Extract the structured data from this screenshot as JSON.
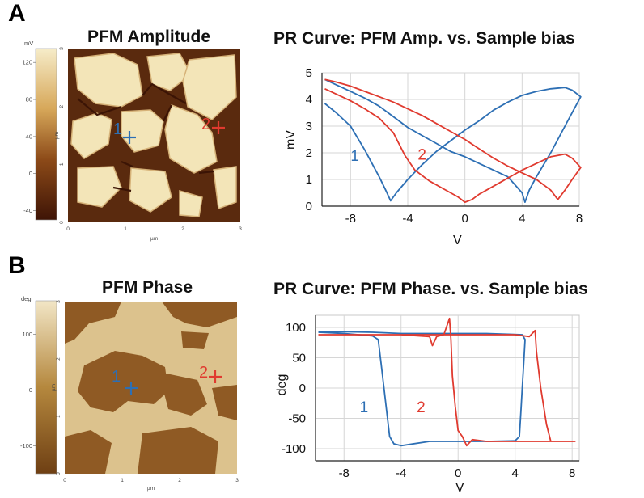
{
  "figure": {
    "panel_a": {
      "letter": "A",
      "image_title": "PFM Amplitude",
      "chart_title": "PR Curve: PFM Amp. vs. Sample bias"
    },
    "panel_b": {
      "letter": "B",
      "image_title": "PFM Phase",
      "chart_title": "PR Curve: PFM Phase. vs. Sample bias"
    }
  },
  "images": [
    {
      "colorbar_unit": "mV",
      "colorbar_ticks": [
        120,
        80,
        40,
        0,
        -40
      ],
      "colorbar_range": [
        -50,
        135
      ],
      "colors": {
        "dark": "#4a1a08",
        "light": "#f3e5b8"
      },
      "axis_unit": "µm",
      "axis_ticks": [
        0,
        1,
        2,
        3
      ],
      "markers": [
        {
          "label": "1",
          "color": "#2d6fb4"
        },
        {
          "label": "2",
          "color": "#e03a2f"
        }
      ]
    },
    {
      "colorbar_unit": "deg",
      "colorbar_ticks": [
        100,
        0,
        -100
      ],
      "colorbar_range": [
        -150,
        160
      ],
      "colors": {
        "dark": "#8f5a24",
        "light": "#dcc28d"
      },
      "axis_unit": "µm",
      "axis_ticks": [
        0,
        1,
        2,
        3
      ],
      "markers": [
        {
          "label": "1",
          "color": "#2d6fb4"
        },
        {
          "label": "2",
          "color": "#e03a2f"
        }
      ]
    }
  ],
  "chart_data": [
    {
      "type": "line",
      "title": "PR Curve: PFM Amp. vs. Sample bias",
      "xlabel": "V",
      "ylabel": "mV",
      "xlim": [
        -10,
        8
      ],
      "ylim": [
        0,
        5
      ],
      "xticks": [
        -8,
        -4,
        0,
        4,
        8
      ],
      "yticks": [
        0,
        1,
        2,
        3,
        4,
        5
      ],
      "grid": true,
      "series": [
        {
          "name": "1",
          "color": "#2d6fb4",
          "points": [
            [
              -9.8,
              3.85
            ],
            [
              -9,
              3.5
            ],
            [
              -8,
              3.0
            ],
            [
              -7,
              2.1
            ],
            [
              -6,
              1.1
            ],
            [
              -5.5,
              0.55
            ],
            [
              -5.2,
              0.2
            ],
            [
              -4.8,
              0.5
            ],
            [
              -4,
              1.0
            ],
            [
              -3,
              1.55
            ],
            [
              -2,
              2.05
            ],
            [
              -1,
              2.45
            ],
            [
              0,
              2.85
            ],
            [
              1,
              3.2
            ],
            [
              2,
              3.6
            ],
            [
              3,
              3.9
            ],
            [
              4,
              4.15
            ],
            [
              5,
              4.3
            ],
            [
              6,
              4.4
            ],
            [
              7,
              4.45
            ],
            [
              7.5,
              4.35
            ],
            [
              8.1,
              4.1
            ],
            [
              7.6,
              3.6
            ],
            [
              7,
              3.0
            ],
            [
              6,
              2.0
            ],
            [
              5,
              1.1
            ],
            [
              4.5,
              0.6
            ],
            [
              4.2,
              0.15
            ],
            [
              4,
              0.5
            ],
            [
              3,
              1.1
            ],
            [
              2,
              1.35
            ],
            [
              1,
              1.6
            ],
            [
              0,
              1.85
            ],
            [
              -1,
              2.05
            ],
            [
              -2,
              2.35
            ],
            [
              -3,
              2.65
            ],
            [
              -4,
              2.95
            ],
            [
              -5,
              3.35
            ],
            [
              -6,
              3.75
            ],
            [
              -7,
              4.05
            ],
            [
              -8,
              4.3
            ],
            [
              -9,
              4.55
            ],
            [
              -9.8,
              4.75
            ]
          ]
        },
        {
          "name": "2",
          "color": "#e03a2f",
          "points": [
            [
              -9.8,
              4.4
            ],
            [
              -9,
              4.2
            ],
            [
              -8,
              3.95
            ],
            [
              -7,
              3.65
            ],
            [
              -6,
              3.3
            ],
            [
              -5,
              2.75
            ],
            [
              -4.2,
              1.9
            ],
            [
              -3.5,
              1.35
            ],
            [
              -2.5,
              0.95
            ],
            [
              -1.5,
              0.65
            ],
            [
              -0.5,
              0.35
            ],
            [
              0,
              0.15
            ],
            [
              0.5,
              0.25
            ],
            [
              1,
              0.45
            ],
            [
              2,
              0.75
            ],
            [
              3,
              1.05
            ],
            [
              4,
              1.35
            ],
            [
              5,
              1.6
            ],
            [
              6,
              1.85
            ],
            [
              7,
              1.95
            ],
            [
              7.5,
              1.8
            ],
            [
              8.1,
              1.45
            ],
            [
              7.5,
              1.0
            ],
            [
              7,
              0.6
            ],
            [
              6.5,
              0.25
            ],
            [
              6,
              0.6
            ],
            [
              5,
              1.0
            ],
            [
              4,
              1.25
            ],
            [
              3,
              1.5
            ],
            [
              2,
              1.8
            ],
            [
              1,
              2.15
            ],
            [
              0,
              2.5
            ],
            [
              -1,
              2.8
            ],
            [
              -2,
              3.1
            ],
            [
              -3,
              3.4
            ],
            [
              -4,
              3.65
            ],
            [
              -5,
              3.9
            ],
            [
              -6,
              4.1
            ],
            [
              -7,
              4.3
            ],
            [
              -8,
              4.5
            ],
            [
              -9,
              4.65
            ],
            [
              -9.8,
              4.75
            ]
          ]
        }
      ],
      "annotations": [
        {
          "text": "1",
          "x": -8.0,
          "y": 1.7,
          "color": "#2d6fb4"
        },
        {
          "text": "2",
          "x": -3.3,
          "y": 1.75,
          "color": "#e03a2f"
        }
      ]
    },
    {
      "type": "line",
      "title": "PR Curve: PFM Phase. vs. Sample bias",
      "xlabel": "V",
      "ylabel": "deg",
      "xlim": [
        -10,
        8.5
      ],
      "ylim": [
        -120,
        120
      ],
      "xticks": [
        -8,
        -4,
        0,
        4,
        8
      ],
      "yticks": [
        100,
        50,
        0,
        -50,
        -100
      ],
      "grid": true,
      "series": [
        {
          "name": "1",
          "color": "#2d6fb4",
          "points": [
            [
              -9.8,
              92
            ],
            [
              -8,
              90
            ],
            [
              -7,
              88
            ],
            [
              -6,
              86
            ],
            [
              -5.6,
              80
            ],
            [
              -5.4,
              40
            ],
            [
              -5.2,
              0
            ],
            [
              -5.0,
              -40
            ],
            [
              -4.8,
              -80
            ],
            [
              -4.5,
              -92
            ],
            [
              -4,
              -95
            ],
            [
              -2,
              -88
            ],
            [
              0,
              -88
            ],
            [
              2,
              -88
            ],
            [
              4,
              -87
            ],
            [
              4.3,
              -80
            ],
            [
              4.4,
              -40
            ],
            [
              4.5,
              0
            ],
            [
              4.6,
              40
            ],
            [
              4.7,
              80
            ],
            [
              4.5,
              88
            ],
            [
              2,
              90
            ],
            [
              0,
              90
            ],
            [
              -2,
              90
            ],
            [
              -4,
              90
            ],
            [
              -6,
              92
            ],
            [
              -8,
              93
            ],
            [
              -9.8,
              93
            ]
          ]
        },
        {
          "name": "2",
          "color": "#e03a2f",
          "points": [
            [
              -9.8,
              88
            ],
            [
              -8,
              88
            ],
            [
              -6,
              88
            ],
            [
              -4,
              88
            ],
            [
              -2,
              85
            ],
            [
              -1.8,
              70
            ],
            [
              -1.5,
              85
            ],
            [
              -1,
              88
            ],
            [
              -0.6,
              115
            ],
            [
              -0.5,
              80
            ],
            [
              -0.4,
              20
            ],
            [
              -0.2,
              -30
            ],
            [
              0,
              -70
            ],
            [
              0.3,
              -80
            ],
            [
              0.6,
              -95
            ],
            [
              1,
              -85
            ],
            [
              2,
              -88
            ],
            [
              4,
              -88
            ],
            [
              6,
              -88
            ],
            [
              8.2,
              -88
            ],
            [
              6.5,
              -88
            ],
            [
              6.2,
              -60
            ],
            [
              5.8,
              0
            ],
            [
              5.5,
              60
            ],
            [
              5.4,
              95
            ],
            [
              5.0,
              85
            ],
            [
              4,
              88
            ],
            [
              2,
              88
            ],
            [
              0,
              88
            ],
            [
              -2,
              88
            ],
            [
              -4,
              88
            ],
            [
              -8,
              88
            ],
            [
              -9.8,
              88
            ]
          ]
        }
      ],
      "annotations": [
        {
          "text": "1",
          "x": -6.9,
          "y": -40,
          "color": "#2d6fb4"
        },
        {
          "text": "2",
          "x": -2.9,
          "y": -40,
          "color": "#e03a2f"
        }
      ]
    }
  ]
}
